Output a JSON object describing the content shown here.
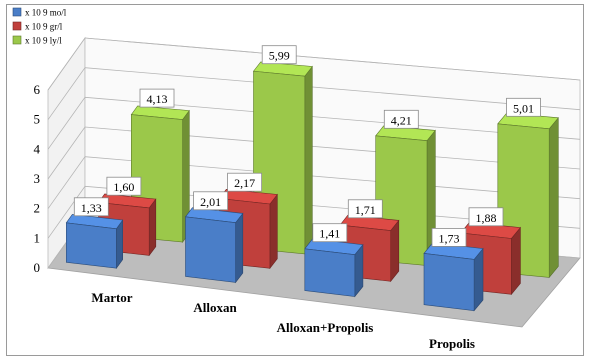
{
  "chart_data": {
    "type": "bar",
    "title": "",
    "xlabel": "",
    "ylabel": "",
    "categories": [
      "Martor",
      "Alloxan",
      "Alloxan+Propolis",
      "Propolis"
    ],
    "series": [
      {
        "name": "x 10 9 mo/l",
        "values": [
          1.33,
          2.01,
          1.41,
          1.73
        ],
        "labels": [
          "1,33",
          "2,01",
          "1,41",
          "1,73"
        ],
        "color": "#4a7ec8"
      },
      {
        "name": "x 10 9 gr/l",
        "values": [
          1.6,
          2.17,
          1.71,
          1.88
        ],
        "labels": [
          "1,60",
          "2,17",
          "1,71",
          "1,88"
        ],
        "color": "#c0403c"
      },
      {
        "name": "x 10 9 ly/l",
        "values": [
          4.13,
          5.99,
          4.21,
          5.01
        ],
        "labels": [
          "4,13",
          "5,99",
          "4,21",
          "5,01"
        ],
        "color": "#9bc84a"
      }
    ],
    "y_ticks": [
      "0",
      "1",
      "2",
      "3",
      "4",
      "5",
      "6"
    ],
    "ylim": [
      0,
      6
    ],
    "grid": true,
    "legend": "top-left",
    "projection": "3d-perspective"
  }
}
